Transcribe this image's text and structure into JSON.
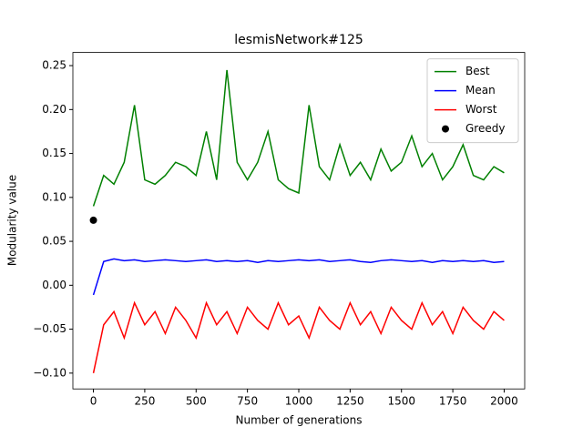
{
  "chart_data": {
    "type": "line",
    "title": "lesmisNetwork#125",
    "xlabel": "Number of generations",
    "ylabel": "Modularity value",
    "x": [
      0,
      50,
      100,
      150,
      200,
      250,
      300,
      350,
      400,
      450,
      500,
      550,
      600,
      650,
      700,
      750,
      800,
      850,
      900,
      950,
      1000,
      1050,
      1100,
      1150,
      1200,
      1250,
      1300,
      1350,
      1400,
      1450,
      1500,
      1550,
      1600,
      1650,
      1700,
      1750,
      1800,
      1850,
      1900,
      1950,
      2000
    ],
    "series": [
      {
        "name": "Best",
        "color": "#008000",
        "values": [
          0.09,
          0.125,
          0.115,
          0.14,
          0.205,
          0.12,
          0.115,
          0.125,
          0.14,
          0.135,
          0.125,
          0.175,
          0.12,
          0.245,
          0.14,
          0.12,
          0.14,
          0.175,
          0.12,
          0.11,
          0.105,
          0.205,
          0.135,
          0.12,
          0.16,
          0.125,
          0.14,
          0.12,
          0.155,
          0.13,
          0.14,
          0.17,
          0.135,
          0.15,
          0.12,
          0.135,
          0.16,
          0.125,
          0.12,
          0.135,
          0.128
        ]
      },
      {
        "name": "Mean",
        "color": "#0000ff",
        "values": [
          -0.011,
          0.027,
          0.03,
          0.028,
          0.029,
          0.027,
          0.028,
          0.029,
          0.028,
          0.027,
          0.028,
          0.029,
          0.027,
          0.028,
          0.027,
          0.028,
          0.026,
          0.028,
          0.027,
          0.028,
          0.029,
          0.028,
          0.029,
          0.027,
          0.028,
          0.029,
          0.027,
          0.026,
          0.028,
          0.029,
          0.028,
          0.027,
          0.028,
          0.026,
          0.028,
          0.027,
          0.028,
          0.027,
          0.028,
          0.026,
          0.027
        ]
      },
      {
        "name": "Worst",
        "color": "#ff0000",
        "values": [
          -0.1,
          -0.045,
          -0.03,
          -0.06,
          -0.02,
          -0.045,
          -0.03,
          -0.055,
          -0.025,
          -0.04,
          -0.06,
          -0.02,
          -0.045,
          -0.03,
          -0.055,
          -0.025,
          -0.04,
          -0.05,
          -0.02,
          -0.045,
          -0.035,
          -0.06,
          -0.025,
          -0.04,
          -0.05,
          -0.02,
          -0.045,
          -0.03,
          -0.055,
          -0.025,
          -0.04,
          -0.05,
          -0.02,
          -0.045,
          -0.03,
          -0.055,
          -0.025,
          -0.04,
          -0.05,
          -0.03,
          -0.04
        ]
      },
      {
        "name": "Greedy",
        "color": "#000000",
        "style": "point",
        "x": [
          0
        ],
        "values": [
          0.074
        ]
      }
    ],
    "xlim": [
      -100,
      2100
    ],
    "ylim": [
      -0.118,
      0.265
    ],
    "xticks": [
      0,
      250,
      500,
      750,
      1000,
      1250,
      1500,
      1750,
      2000
    ],
    "yticks": [
      {
        "value": -0.1,
        "label": "−0.10"
      },
      {
        "value": -0.05,
        "label": "−0.05"
      },
      {
        "value": 0,
        "label": "0.00"
      },
      {
        "value": 0.05,
        "label": "0.05"
      },
      {
        "value": 0.1,
        "label": "0.10"
      },
      {
        "value": 0.15,
        "label": "0.15"
      },
      {
        "value": 0.2,
        "label": "0.20"
      },
      {
        "value": 0.25,
        "label": "0.25"
      }
    ],
    "legend": "upper right"
  }
}
